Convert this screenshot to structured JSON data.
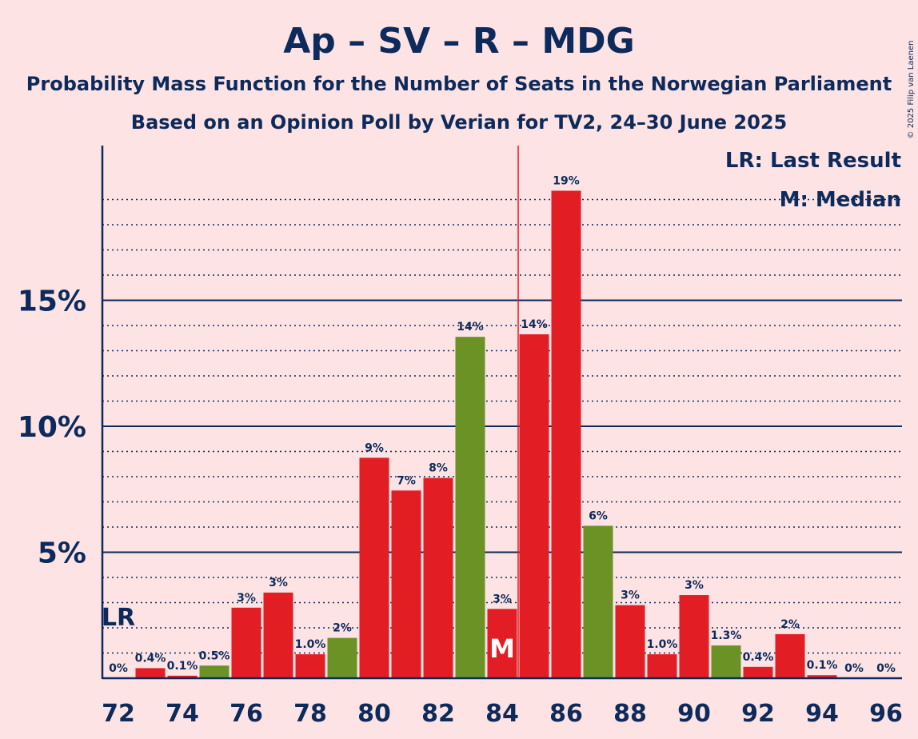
{
  "chart_data": {
    "type": "bar",
    "title": "Ap – SV – R – MDG",
    "subtitle1": "Probability Mass Function for the Number of Seats in the Norwegian Parliament",
    "subtitle2": "Based on an Opinion Poll by Verian for TV2, 24–30 June 2025",
    "copyright": "© 2025 Filip van Laenen",
    "x": [
      72,
      73,
      74,
      75,
      76,
      77,
      78,
      79,
      80,
      81,
      82,
      83,
      84,
      85,
      86,
      87,
      88,
      89,
      90,
      91,
      92,
      93,
      94,
      95,
      96
    ],
    "values": [
      0,
      0.4,
      0.1,
      0.5,
      2.8,
      3.4,
      0.95,
      1.6,
      8.75,
      7.45,
      7.95,
      13.55,
      2.75,
      13.65,
      19.35,
      6.05,
      2.9,
      0.95,
      3.3,
      1.3,
      0.45,
      1.75,
      0.12,
      0,
      0
    ],
    "labels": [
      "0%",
      "0.4%",
      "0.1%",
      "0.5%",
      "3%",
      "3%",
      "1.0%",
      "2%",
      "9%",
      "7%",
      "8%",
      "14%",
      "3%",
      "14%",
      "19%",
      "6%",
      "3%",
      "1.0%",
      "3%",
      "1.3%",
      "0.4%",
      "2%",
      "0.1%",
      "0%",
      "0%"
    ],
    "colors": [
      "red",
      "red",
      "red",
      "green",
      "red",
      "red",
      "red",
      "green",
      "red",
      "red",
      "red",
      "green",
      "red",
      "red",
      "red",
      "green",
      "red",
      "red",
      "red",
      "green",
      "red",
      "red",
      "red",
      "green",
      "red"
    ],
    "xticks": [
      72,
      74,
      76,
      78,
      80,
      82,
      84,
      86,
      88,
      90,
      92,
      94,
      96
    ],
    "yticks": [
      {
        "value": 5,
        "label": "5%"
      },
      {
        "value": 10,
        "label": "10%"
      },
      {
        "value": 15,
        "label": "15%"
      }
    ],
    "ylim": [
      0,
      21
    ],
    "majority_line": 84.5,
    "last_result": {
      "seat": 72,
      "label": "LR"
    },
    "median": {
      "seat": 84,
      "label": "M"
    },
    "legend": [
      "LR: Last Result",
      "M: Median"
    ],
    "palette": {
      "red": "#e31d24",
      "green": "#6a9225",
      "axis": "#0c2a5b",
      "background": "#fde3e3"
    }
  }
}
